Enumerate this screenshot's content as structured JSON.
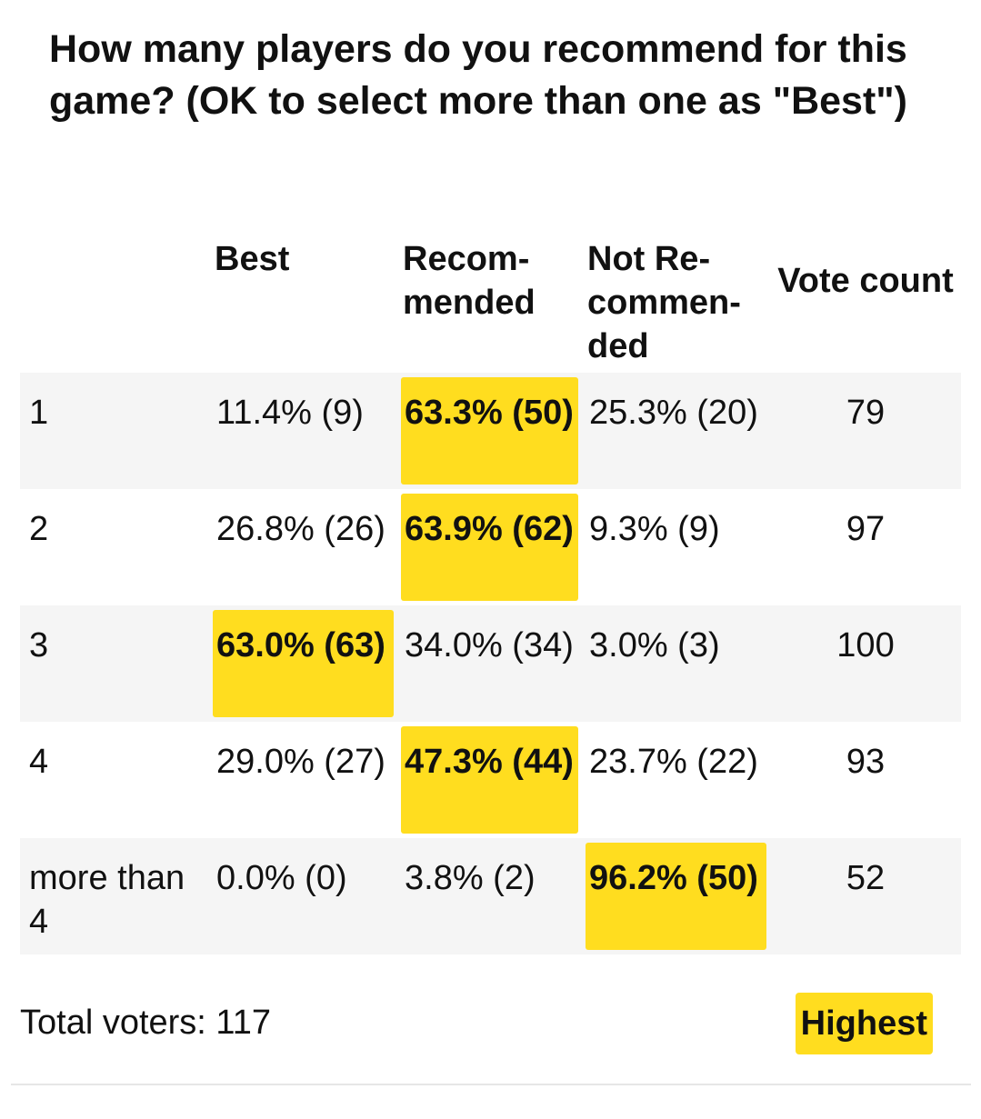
{
  "title": "How many players do you recommend for this game? (OK to select more than one as \"Best\")",
  "columns": [
    "",
    "Best",
    "Recom-mended",
    "Not Re-commen-ded",
    "Vote count"
  ],
  "rows": [
    {
      "label": "1",
      "best": "11.4% (9)",
      "recommended": "63.3% (50)",
      "not_recommended": "25.3% (20)",
      "votes": "79",
      "highest": "recommended"
    },
    {
      "label": "2",
      "best": "26.8% (26)",
      "recommended": "63.9% (62)",
      "not_recommended": "9.3% (9)",
      "votes": "97",
      "highest": "recommended"
    },
    {
      "label": "3",
      "best": "63.0% (63)",
      "recommended": "34.0% (34)",
      "not_recommended": "3.0% (3)",
      "votes": "100",
      "highest": "best"
    },
    {
      "label": "4",
      "best": "29.0% (27)",
      "recommended": "47.3% (44)",
      "not_recommended": "23.7% (22)",
      "votes": "93",
      "highest": "recommended"
    },
    {
      "label": "more than 4",
      "best": "0.0% (0)",
      "recommended": "3.8% (2)",
      "not_recommended": "96.2% (50)",
      "votes": "52",
      "highest": "not_recommended"
    }
  ],
  "footer": {
    "total_voters": "Total voters: 117",
    "legend": "Highest"
  },
  "colors": {
    "highlight": "#ffdd1f",
    "row_shade": "#f5f5f5"
  }
}
